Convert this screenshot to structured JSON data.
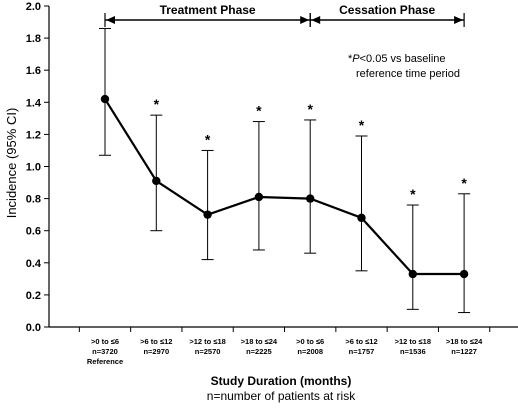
{
  "chart_data": {
    "type": "line",
    "ylabel": "Incidence (95% CI)",
    "xlabel": "Study Duration (months)",
    "xlabel_sub": "n=number of patients at risk",
    "ylim": [
      0,
      2.0
    ],
    "yticks": [
      "0.0",
      "0.2",
      "0.4",
      "0.6",
      "0.8",
      "1.0",
      "1.2",
      "1.4",
      "1.6",
      "1.8",
      "2.0"
    ],
    "grid": false,
    "legend": "none",
    "categories": [
      {
        "range": ">0 to ≤6",
        "n": "n=3720",
        "extra": "Reference"
      },
      {
        "range": ">6 to ≤12",
        "n": "n=2970",
        "extra": ""
      },
      {
        "range": ">12 to ≤18",
        "n": "n=2570",
        "extra": ""
      },
      {
        "range": ">18 to ≤24",
        "n": "n=2225",
        "extra": ""
      },
      {
        "range": ">0 to ≤6",
        "n": "n=2008",
        "extra": ""
      },
      {
        "range": ">6 to ≤12",
        "n": "n=1757",
        "extra": ""
      },
      {
        "range": ">12 to ≤18",
        "n": "n=1536",
        "extra": ""
      },
      {
        "range": ">18 to ≤24",
        "n": "n=1227",
        "extra": ""
      }
    ],
    "values": [
      1.42,
      0.91,
      0.7,
      0.81,
      0.8,
      0.68,
      0.33,
      0.33
    ],
    "ci_lower": [
      1.07,
      0.6,
      0.42,
      0.48,
      0.46,
      0.35,
      0.11,
      0.09
    ],
    "ci_upper": [
      1.86,
      1.32,
      1.1,
      1.28,
      1.29,
      1.19,
      0.76,
      0.83
    ],
    "significant": [
      false,
      true,
      true,
      true,
      true,
      true,
      true,
      true
    ],
    "star_symbol": "*",
    "phases": [
      {
        "label": "Treatment Phase",
        "start_index": 0,
        "end_index": 4
      },
      {
        "label": "Cessation Phase",
        "start_index": 4,
        "end_index": 7
      }
    ],
    "annotation": {
      "line1_prefix": "*",
      "line1_italic": "P",
      "line1_rest": "<0.05 vs baseline",
      "line2": "reference time period"
    }
  }
}
